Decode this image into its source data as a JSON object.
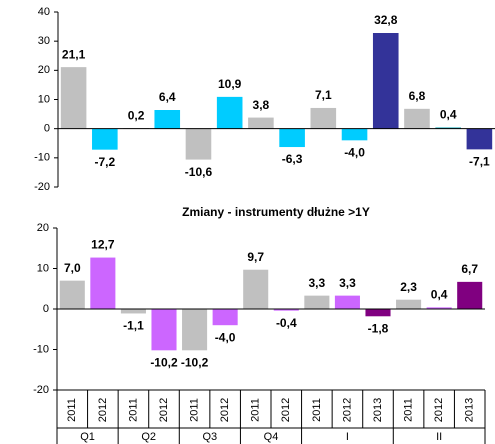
{
  "chart_data": [
    {
      "type": "bar",
      "values": [
        21.1,
        -7.2,
        0.2,
        6.4,
        -10.6,
        10.9,
        3.8,
        -6.3,
        7.1,
        -4.0,
        32.8,
        6.8,
        0.4,
        -7.1
      ],
      "value_labels": [
        "21,1",
        "-7,2",
        "0,2",
        "6,4",
        "-10,6",
        "10,9",
        "3,8",
        "-6,3",
        "7,1",
        "-4,0",
        "32,8",
        "6,8",
        "0,4",
        "-7,1"
      ],
      "colors": [
        "#c0c0c0",
        "#00ccff",
        "#c0c0c0",
        "#00ccff",
        "#c0c0c0",
        "#00ccff",
        "#c0c0c0",
        "#00ccff",
        "#c0c0c0",
        "#00ccff",
        "#333399",
        "#c0c0c0",
        "#00a0b0",
        "#333399"
      ],
      "ylim": [
        -20,
        40
      ],
      "yticks": [
        -20,
        -10,
        0,
        10,
        20,
        30,
        40
      ]
    },
    {
      "type": "bar",
      "title": "Zmiany - instrumenty dłużne >1Y",
      "groups": [
        {
          "name": "Q1",
          "categories": [
            "2011",
            "2012"
          ]
        },
        {
          "name": "Q2",
          "categories": [
            "2011",
            "2012"
          ]
        },
        {
          "name": "Q3",
          "categories": [
            "2011",
            "2012"
          ]
        },
        {
          "name": "Q4",
          "categories": [
            "2011",
            "2012"
          ]
        },
        {
          "name": "I",
          "categories": [
            "2011",
            "2012",
            "2013"
          ]
        },
        {
          "name": "II",
          "categories": [
            "2011",
            "2012",
            "2013"
          ]
        }
      ],
      "values": [
        7.0,
        12.7,
        -1.1,
        -10.2,
        -10.2,
        -4.0,
        9.7,
        -0.4,
        3.3,
        3.3,
        -1.8,
        2.3,
        0.4,
        6.7
      ],
      "value_labels": [
        "7,0",
        "12,7",
        "-1,1",
        "-10,2",
        "-10,2",
        "-4,0",
        "9,7",
        "-0,4",
        "3,3",
        "3,3",
        "-1,8",
        "2,3",
        "0,4",
        "6,7"
      ],
      "colors": [
        "#c0c0c0",
        "#cc66ff",
        "#c0c0c0",
        "#cc66ff",
        "#c0c0c0",
        "#cc66ff",
        "#c0c0c0",
        "#cc66ff",
        "#c0c0c0",
        "#cc66ff",
        "#800080",
        "#c0c0c0",
        "#cc66ff",
        "#800080"
      ],
      "ylim": [
        -20,
        20
      ],
      "yticks": [
        -20,
        -10,
        0,
        10,
        20
      ]
    }
  ]
}
